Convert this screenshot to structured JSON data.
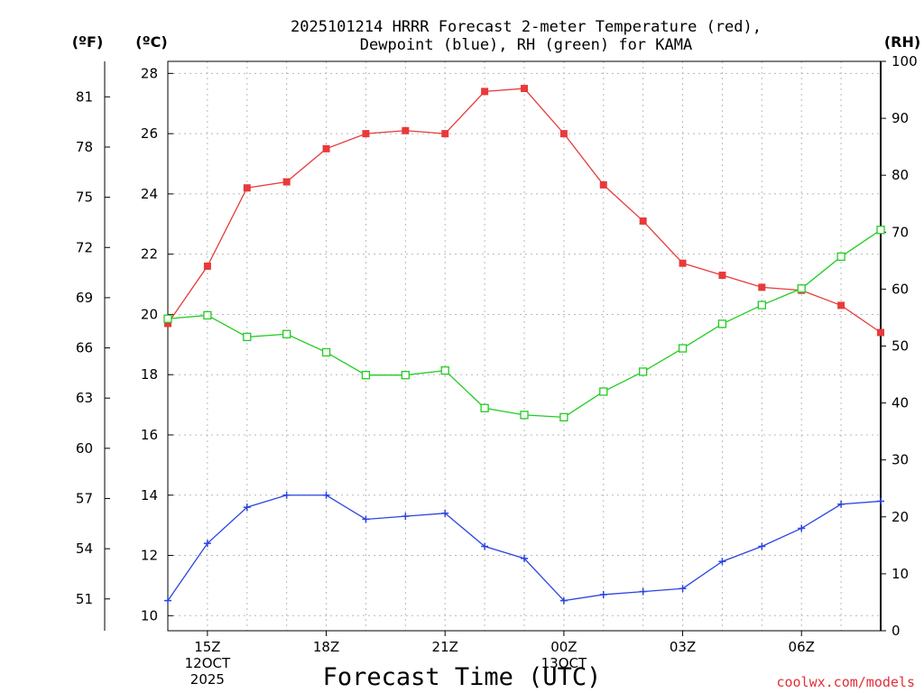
{
  "chart_data": {
    "type": "line",
    "title_line1": "2025101214 HRRR Forecast 2-meter Temperature (red),",
    "title_line2": "Dewpoint (blue), RH (green) for KAMA",
    "xlabel": "Forecast Time (UTC)",
    "credit": "coolwx.com/models",
    "units": {
      "fahrenheit": "(ºF)",
      "celsius": "(ºC)",
      "rh": "(RH)"
    },
    "x": [
      14,
      15,
      16,
      17,
      18,
      19,
      20,
      21,
      22,
      23,
      24,
      25,
      26,
      27,
      28,
      29,
      30,
      31,
      32
    ],
    "xlim": [
      14,
      32
    ],
    "x_ticks": [
      {
        "x": 15,
        "line1": "15Z",
        "line2": "12OCT",
        "line3": "2025"
      },
      {
        "x": 18,
        "line1": "18Z",
        "line2": "",
        "line3": ""
      },
      {
        "x": 21,
        "line1": "21Z",
        "line2": "",
        "line3": ""
      },
      {
        "x": 24,
        "line1": "00Z",
        "line2": "13OCT",
        "line3": ""
      },
      {
        "x": 27,
        "line1": "03Z",
        "line2": "",
        "line3": ""
      },
      {
        "x": 30,
        "line1": "06Z",
        "line2": "",
        "line3": ""
      }
    ],
    "celsius_axis": {
      "min": 9.5,
      "max": 28.4,
      "ticks": [
        10,
        12,
        14,
        16,
        18,
        20,
        22,
        24,
        26,
        28
      ]
    },
    "fahrenheit_axis": {
      "ticks": [
        51,
        54,
        57,
        60,
        63,
        66,
        69,
        72,
        75,
        78,
        81
      ]
    },
    "rh_axis": {
      "min": 0,
      "max": 100,
      "ticks": [
        0,
        10,
        20,
        30,
        40,
        50,
        60,
        70,
        80,
        90,
        100
      ]
    },
    "grid": true,
    "series": [
      {
        "name": "Temperature",
        "unit": "C",
        "color": "#e83a3a",
        "marker": "filled-square",
        "values": [
          19.7,
          21.6,
          24.2,
          24.4,
          25.5,
          26.0,
          26.1,
          26.0,
          27.4,
          27.5,
          26.0,
          24.3,
          23.1,
          21.7,
          21.3,
          20.9,
          20.8,
          20.3,
          19.4
        ]
      },
      {
        "name": "Dewpoint",
        "unit": "C",
        "color": "#2b45e0",
        "marker": "plus",
        "values": [
          10.5,
          12.4,
          13.6,
          14.0,
          14.0,
          13.2,
          13.3,
          13.4,
          12.3,
          11.9,
          10.5,
          10.7,
          10.8,
          10.9,
          11.8,
          12.3,
          12.9,
          13.7,
          13.8
        ]
      },
      {
        "name": "RH",
        "unit": "%",
        "color": "#22cc22",
        "marker": "open-square",
        "values": [
          54.8,
          55.4,
          51.6,
          52.1,
          48.9,
          44.9,
          44.9,
          45.7,
          39.1,
          37.9,
          37.5,
          42.0,
          45.5,
          49.6,
          53.9,
          57.2,
          60.1,
          65.7,
          70.4
        ]
      }
    ]
  }
}
